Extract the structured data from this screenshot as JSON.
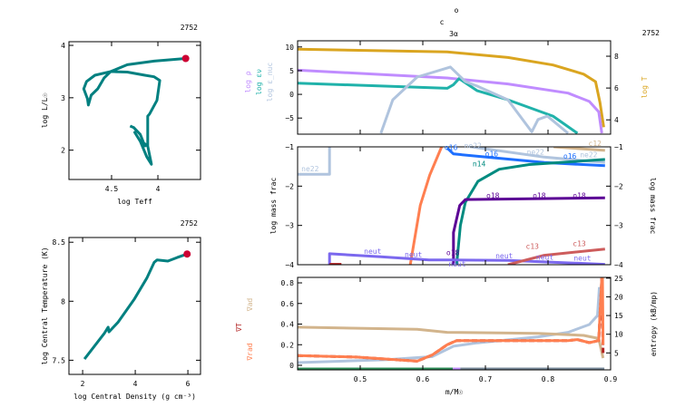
{
  "model_number": "2752",
  "chart_data": [
    {
      "id": "hr",
      "type": "line",
      "xlabel": "log Teff",
      "ylabel": "log L/L☉",
      "xlim": [
        4.96,
        3.54
      ],
      "ylim": [
        1.44,
        4.07
      ],
      "xticks": [
        4.5,
        4
      ],
      "yticks": [
        2,
        3,
        4
      ],
      "series": [
        {
          "color": "#008080",
          "points": [
            [
              4.3,
              2.46
            ],
            [
              4.26,
              2.43
            ],
            [
              4.19,
              2.3
            ],
            [
              4.14,
              2.08
            ],
            [
              4.12,
              2.1
            ],
            [
              4.19,
              2.17
            ],
            [
              4.25,
              2.34
            ],
            [
              4.19,
              2.17
            ],
            [
              4.12,
              1.87
            ],
            [
              4.07,
              1.73
            ],
            [
              4.11,
              2.08
            ],
            [
              4.11,
              2.65
            ],
            [
              4.09,
              2.69
            ],
            [
              4.01,
              2.95
            ],
            [
              3.98,
              3.33
            ],
            [
              4.04,
              3.4
            ],
            [
              4.14,
              3.43
            ],
            [
              4.33,
              3.49
            ],
            [
              4.51,
              3.5
            ],
            [
              4.58,
              3.38
            ],
            [
              4.65,
              3.17
            ],
            [
              4.72,
              3.05
            ],
            [
              4.75,
              2.86
            ],
            [
              4.76,
              2.98
            ],
            [
              4.8,
              3.17
            ],
            [
              4.77,
              3.31
            ],
            [
              4.68,
              3.43
            ],
            [
              4.51,
              3.5
            ],
            [
              4.33,
              3.63
            ],
            [
              4.04,
              3.7
            ],
            [
              3.7,
              3.75
            ]
          ]
        }
      ],
      "marker": {
        "color": "#CC0033",
        "point": [
          3.7,
          3.75
        ]
      }
    },
    {
      "id": "rhoc-tc",
      "type": "line",
      "xlabel": "log Central Density (g cm⁻³)",
      "ylabel": "log Central Temperature (K)",
      "xlim": [
        1.48,
        6.48
      ],
      "ylim": [
        7.38,
        8.54
      ],
      "xticks": [
        2,
        4,
        6
      ],
      "yticks": [
        7.5,
        8,
        8.5
      ],
      "series": [
        {
          "color": "#008080",
          "points": [
            [
              2.07,
              7.51
            ],
            [
              2.83,
              7.73
            ],
            [
              2.97,
              7.78
            ],
            [
              3.0,
              7.74
            ],
            [
              3.34,
              7.82
            ],
            [
              3.97,
              8.02
            ],
            [
              4.45,
              8.2
            ],
            [
              4.72,
              8.33
            ],
            [
              4.83,
              8.35
            ],
            [
              5.24,
              8.34
            ],
            [
              5.59,
              8.37
            ],
            [
              5.97,
              8.4
            ]
          ]
        }
      ],
      "marker": {
        "color": "#CC0033",
        "point": [
          5.97,
          8.4
        ]
      }
    },
    {
      "id": "profile-top",
      "type": "line",
      "xlim": [
        0.4,
        0.9
      ],
      "ylim": [
        -8.4,
        11.3
      ],
      "y2lim": [
        3.1,
        8.97
      ],
      "yticks": [
        -5,
        0,
        5,
        10
      ],
      "y2ticks": [
        4,
        6,
        8
      ],
      "ylabels": [
        {
          "text": "log ρ",
          "color": "#C08CFF"
        },
        {
          "text": "log εν",
          "color": "#20B2AA"
        },
        {
          "text": "log ε_nuc",
          "color": "#B0C4DE"
        }
      ],
      "y2label": {
        "text": "log T",
        "color": "#DAA520"
      },
      "annotations": [
        "o",
        "c",
        "3α"
      ],
      "series": [
        {
          "name": "log T",
          "axis": "y2",
          "color": "#DAA520",
          "points": [
            [
              0.4,
              8.44
            ],
            [
              0.639,
              8.27
            ],
            [
              0.736,
              7.92
            ],
            [
              0.808,
              7.45
            ],
            [
              0.857,
              6.87
            ],
            [
              0.876,
              6.4
            ],
            [
              0.883,
              5.08
            ],
            [
              0.889,
              3.54
            ]
          ]
        },
        {
          "name": "log ρ",
          "axis": "y",
          "color": "#C08CFF",
          "points": [
            [
              0.4,
              5.1
            ],
            [
              0.639,
              3.46
            ],
            [
              0.736,
              2.2
            ],
            [
              0.832,
              0.26
            ],
            [
              0.866,
              -1.5
            ],
            [
              0.881,
              -3.7
            ],
            [
              0.886,
              -8.2
            ]
          ]
        },
        {
          "name": "log εν",
          "axis": "y",
          "color": "#20B2AA",
          "points": [
            [
              0.4,
              2.37
            ],
            [
              0.639,
              1.28
            ],
            [
              0.649,
              2.05
            ],
            [
              0.658,
              3.33
            ],
            [
              0.687,
              0.77
            ],
            [
              0.736,
              -1.15
            ],
            [
              0.808,
              -4.6
            ],
            [
              0.847,
              -8.2
            ]
          ]
        },
        {
          "name": "log ε_nuc",
          "axis": "y",
          "color": "#B0C4DE",
          "points": [
            [
              0.533,
              -8.2
            ],
            [
              0.552,
              -1.15
            ],
            [
              0.591,
              3.65
            ],
            [
              0.644,
              5.77
            ],
            [
              0.668,
              2.7
            ],
            [
              0.687,
              1.73
            ],
            [
              0.736,
              -1.15
            ],
            [
              0.774,
              -7.9
            ],
            [
              0.784,
              -5.3
            ],
            [
              0.799,
              -4.6
            ],
            [
              0.832,
              -8.2
            ]
          ]
        }
      ]
    },
    {
      "id": "profile-mid",
      "type": "line",
      "xlim": [
        0.4,
        0.9
      ],
      "ylim": [
        -4,
        -1
      ],
      "yticks": [
        -4,
        -3,
        -2,
        -1
      ],
      "ylabel": "log mass frac",
      "series": [
        {
          "name": "ne22",
          "color": "#B0C4DE",
          "labels_at": [
            [
              0.42,
              -1.62
            ]
          ],
          "points": [
            [
              0.4,
              -1.7
            ],
            [
              0.451,
              -1.7
            ],
            [
              0.451,
              -1.0
            ]
          ]
        },
        {
          "name": "ne22",
          "color": "#B0C4DE",
          "labels_at": [
            [
              0.68,
              -1.03
            ],
            [
              0.78,
              -1.2
            ],
            [
              0.865,
              -1.26
            ]
          ],
          "points": [
            [
              0.678,
              -1.0
            ],
            [
              0.794,
              -1.26
            ],
            [
              0.891,
              -1.4
            ]
          ]
        },
        {
          "name": "c12",
          "color": "#D2B48C",
          "labels_at": [
            [
              0.875,
              -0.98
            ]
          ],
          "points": [
            [
              0.809,
              -1.0
            ],
            [
              0.891,
              -1.09
            ]
          ]
        },
        {
          "name": "o16",
          "color": "#1E6FFF",
          "labels_at": [
            [
              0.645,
              -1.08
            ],
            [
              0.71,
              -1.24
            ],
            [
              0.835,
              -1.3
            ]
          ],
          "points": [
            [
              0.639,
              -1.03
            ],
            [
              0.649,
              -1.18
            ],
            [
              0.794,
              -1.4
            ],
            [
              0.891,
              -1.48
            ]
          ]
        },
        {
          "name": "n14",
          "color": "#008B80",
          "labels_at": [
            [
              0.69,
              -1.43
            ]
          ],
          "points": [
            [
              0.654,
              -4.0
            ],
            [
              0.66,
              -3.0
            ],
            [
              0.668,
              -2.41
            ],
            [
              0.688,
              -1.88
            ],
            [
              0.722,
              -1.57
            ],
            [
              0.77,
              -1.45
            ],
            [
              0.891,
              -1.32
            ]
          ]
        },
        {
          "name": "o18",
          "color": "#5B0095",
          "labels_at": [
            [
              0.648,
              -3.76
            ],
            [
              0.712,
              -2.3
            ],
            [
              0.786,
              -2.3
            ],
            [
              0.85,
              -2.3
            ]
          ],
          "points": [
            [
              0.649,
              -4.0
            ],
            [
              0.649,
              -3.18
            ],
            [
              0.659,
              -2.49
            ],
            [
              0.668,
              -2.34
            ],
            [
              0.891,
              -2.3
            ]
          ]
        },
        {
          "color": "#FF7F50",
          "points": [
            [
              0.58,
              -4.0
            ],
            [
              0.596,
              -2.49
            ],
            [
              0.611,
              -1.72
            ],
            [
              0.63,
              -1.0
            ]
          ]
        },
        {
          "name": "neut",
          "color": "#7B68EE",
          "labels_at": [
            [
              0.52,
              -3.72
            ],
            [
              0.585,
              -3.8
            ],
            [
              0.655,
              -3.84
            ],
            [
              0.73,
              -3.84
            ],
            [
              0.795,
              -3.87
            ],
            [
              0.855,
              -3.9
            ]
          ],
          "points": [
            [
              0.451,
              -4.0
            ],
            [
              0.451,
              -3.72
            ],
            [
              0.533,
              -3.8
            ],
            [
              0.61,
              -3.88
            ],
            [
              0.649,
              -3.88
            ],
            [
              0.736,
              -3.89
            ],
            [
              0.891,
              -3.99
            ]
          ]
        },
        {
          "name": "c13",
          "color": "#CD5C5C",
          "labels_at": [
            [
              0.775,
              -3.66
            ],
            [
              0.85,
              -3.53
            ]
          ],
          "points": [
            [
              0.736,
              -4.0
            ],
            [
              0.794,
              -3.76
            ],
            [
              0.891,
              -3.6
            ]
          ]
        },
        {
          "color": "#B22222",
          "points": [
            [
              0.451,
              -3.99
            ],
            [
              0.47,
              -3.99
            ]
          ]
        }
      ]
    },
    {
      "id": "profile-bottom",
      "type": "line",
      "xlim": [
        0.4,
        0.9
      ],
      "ylim": [
        -0.044,
        0.853
      ],
      "y2lim": [
        0.47,
        25.2
      ],
      "xticks": [
        0.5,
        0.6,
        0.7,
        0.8,
        0.9
      ],
      "yticks": [
        0,
        0.2,
        0.4,
        0.6,
        0.8
      ],
      "y2ticks": [
        5,
        10,
        15,
        20,
        25
      ],
      "xlabel": "m/M☉",
      "ylabels": [
        {
          "text": "∇ad",
          "color": "#D2B48C"
        },
        {
          "text": "∇T",
          "color": "#B22222"
        },
        {
          "text": "∇rad",
          "color": "#FF7F50"
        }
      ],
      "y2label": "entropy (kB/mp)",
      "series": [
        {
          "name": "entropy",
          "axis": "y2",
          "color": "#B0C4DE",
          "points": [
            [
              0.4,
              2.4
            ],
            [
              0.543,
              3.2
            ],
            [
              0.615,
              4.0
            ],
            [
              0.649,
              6.8
            ],
            [
              0.687,
              7.7
            ],
            [
              0.784,
              9.3
            ],
            [
              0.832,
              10.5
            ],
            [
              0.866,
              12.6
            ],
            [
              0.879,
              15
            ],
            [
              0.882,
              22.6
            ]
          ]
        },
        {
          "name": "∇ad",
          "axis": "y",
          "color": "#D2B48C",
          "points": [
            [
              0.4,
              0.37
            ],
            [
              0.591,
              0.35
            ],
            [
              0.639,
              0.32
            ],
            [
              0.784,
              0.31
            ],
            [
              0.857,
              0.29
            ],
            [
              0.881,
              0.26
            ],
            [
              0.888,
              0.07
            ]
          ]
        },
        {
          "name": "∇T",
          "axis": "y",
          "color": "#B22222",
          "dash": true,
          "points": [
            [
              0.4,
              0.094
            ],
            [
              0.494,
              0.08
            ],
            [
              0.591,
              0.04
            ],
            [
              0.615,
              0.1
            ],
            [
              0.639,
              0.2
            ],
            [
              0.654,
              0.24
            ],
            [
              0.832,
              0.24
            ],
            [
              0.847,
              0.25
            ],
            [
              0.866,
              0.22
            ],
            [
              0.881,
              0.24
            ],
            [
              0.886,
              0.853
            ],
            [
              0.888,
              0.12
            ]
          ]
        },
        {
          "name": "∇rad",
          "axis": "y",
          "color": "#FF7F50",
          "points": [
            [
              0.4,
              0.094
            ],
            [
              0.494,
              0.08
            ],
            [
              0.591,
              0.04
            ],
            [
              0.615,
              0.1
            ],
            [
              0.639,
              0.2
            ],
            [
              0.654,
              0.24
            ],
            [
              0.832,
              0.24
            ],
            [
              0.847,
              0.25
            ],
            [
              0.866,
              0.22
            ],
            [
              0.881,
              0.24
            ],
            [
              0.886,
              0.853
            ],
            [
              0.887,
              0.853
            ],
            [
              0.888,
              0.2
            ]
          ]
        },
        {
          "name": "mixing-conv",
          "axis": "y",
          "color": "#2E8B57",
          "points": [
            [
              0.4,
              -0.035
            ],
            [
              0.648,
              -0.035
            ]
          ]
        },
        {
          "name": "mixing-overshoot",
          "axis": "y",
          "color": "#C08CFF",
          "points": [
            [
              0.648,
              -0.035
            ],
            [
              0.66,
              -0.035
            ]
          ]
        },
        {
          "name": "mixing-none",
          "axis": "y",
          "color": "#778899",
          "points": [
            [
              0.66,
              -0.035
            ],
            [
              0.89,
              -0.035
            ]
          ]
        }
      ]
    }
  ]
}
